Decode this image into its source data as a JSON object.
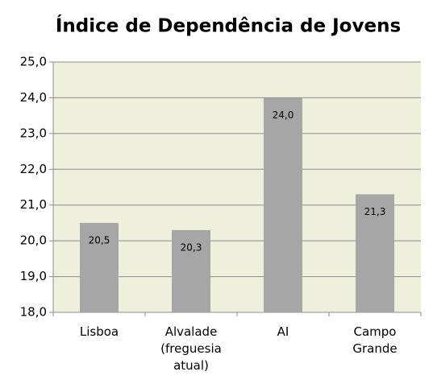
{
  "chart_data": {
    "type": "bar",
    "title": "Índice de Dependência de Jovens",
    "categories": [
      "Lisboa",
      "Alvalade (freguesia atual)",
      "AI",
      "Campo Grande"
    ],
    "values": [
      20.5,
      20.3,
      24.0,
      21.3
    ],
    "value_labels": [
      "20,5",
      "20,3",
      "24,0",
      "21,3"
    ],
    "color": "#a6a6a6",
    "ylim": [
      18,
      25
    ],
    "yticks": [
      {
        "value": 18,
        "label": "18,0"
      },
      {
        "value": 19,
        "label": "19,0"
      },
      {
        "value": 20,
        "label": "20,0"
      },
      {
        "value": 21,
        "label": "21,0"
      },
      {
        "value": 22,
        "label": "22,0"
      },
      {
        "value": 23,
        "label": "23,0"
      },
      {
        "value": 24,
        "label": "24,0"
      },
      {
        "value": 25,
        "label": "25,0"
      }
    ],
    "grid": true
  }
}
